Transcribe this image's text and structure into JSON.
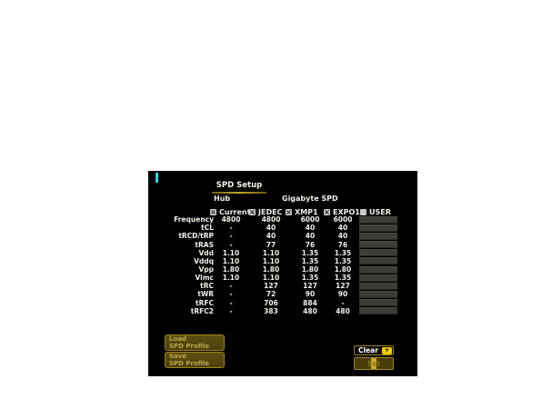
{
  "panel": {
    "tab_label": "SPD Setup",
    "hub_label": "Hub",
    "gigabyte_label": "Gigabyte SPD"
  },
  "columns": [
    {
      "label": "Current",
      "checked": true
    },
    {
      "label": "JEDEC",
      "checked": true
    },
    {
      "label": "XMP1",
      "checked": true
    },
    {
      "label": "EXPO1",
      "checked": true
    },
    {
      "label": "USER",
      "checked": false
    }
  ],
  "rows": [
    {
      "label": "Frequency",
      "values": [
        "4800",
        "4800",
        "6000",
        "6000"
      ],
      "user": ""
    },
    {
      "label": "tCL",
      "values": [
        "-",
        "40",
        "40",
        "40"
      ],
      "user": ""
    },
    {
      "label": "tRCD/tRP",
      "values": [
        "-",
        "40",
        "40",
        "40"
      ],
      "user": ""
    },
    {
      "label": "tRAS",
      "values": [
        "-",
        "77",
        "76",
        "76"
      ],
      "user": ""
    },
    {
      "label": "Vdd",
      "values": [
        "1.10",
        "1.10",
        "1.35",
        "1.35"
      ],
      "user": ""
    },
    {
      "label": "Vddq",
      "values": [
        "1.10",
        "1.10",
        "1.35",
        "1.35"
      ],
      "user": ""
    },
    {
      "label": "Vpp",
      "values": [
        "1.80",
        "1.80",
        "1.80",
        "1.80"
      ],
      "user": ""
    },
    {
      "label": "Vimc",
      "values": [
        "1.10",
        "1.10",
        "1.35",
        "1.35"
      ],
      "user": ""
    },
    {
      "label": "tRC",
      "values": [
        "-",
        "127",
        "127",
        "127"
      ],
      "user": ""
    },
    {
      "label": "tWR",
      "values": [
        "-",
        "72",
        "90",
        "90"
      ],
      "user": ""
    },
    {
      "label": "tRFC",
      "values": [
        "-",
        "706",
        "884",
        "-"
      ],
      "user": ""
    },
    {
      "label": "tRFC2",
      "values": [
        "-",
        "383",
        "480",
        "480"
      ],
      "user": ""
    }
  ],
  "buttons": {
    "load": {
      "line1": "Load",
      "line2": "SPD Profile"
    },
    "save": {
      "line1": "Save",
      "line2": "SPD Profile"
    },
    "clear_label": "Clear",
    "set_label": "Set"
  },
  "icons": {
    "checkbox_checked_glyph": "×",
    "dropdown_arrow_glyph": "▼"
  },
  "colors": {
    "panel_bg": "#000000",
    "accent_gold": "#a8891f",
    "indicator_cyan": "#2bd8da",
    "button_olive": "#57490f",
    "highlight_yellow": "#f2cb05",
    "user_cell_gray": "#3e3c37"
  }
}
